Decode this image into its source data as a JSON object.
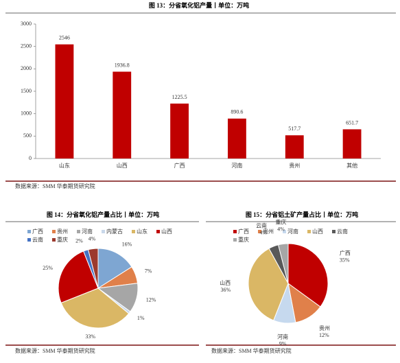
{
  "chart_data": [
    {
      "type": "bar",
      "title": "图 13：分省氧化铝产量丨单位：万吨",
      "categories": [
        "山东",
        "山西",
        "广西",
        "河南",
        "贵州",
        "其他"
      ],
      "values": [
        2546,
        1936.8,
        1225.5,
        890.6,
        517.7,
        651.7
      ],
      "color": "#c00000",
      "ylim": [
        0,
        3000
      ],
      "yticks": [
        0,
        500,
        1000,
        1500,
        2000,
        2500,
        3000
      ],
      "source": "数据来源：SMM 华泰期货研究院"
    },
    {
      "type": "pie",
      "title": "图 14：分省氧化铝产量占比丨单位：万吨",
      "categories": [
        "广西",
        "贵州",
        "河南",
        "内蒙古",
        "山东",
        "山西",
        "云南",
        "重庆"
      ],
      "values": [
        16,
        7,
        12,
        1,
        33,
        25,
        2,
        4
      ],
      "value_labels": [
        "16%",
        "7%",
        "12%",
        "1%",
        "33%",
        "25%",
        "2%",
        "4%"
      ],
      "colors": [
        "#7ea6d2",
        "#e0804a",
        "#a6a6a6",
        "#c9d8ea",
        "#dab765",
        "#c00000",
        "#4472c4",
        "#9c3a2e"
      ],
      "source": "数据来源：SMM 华泰期货研究院"
    },
    {
      "type": "pie",
      "title": "图 15：分省铝土矿产量占比丨单位：万吨",
      "categories": [
        "广西",
        "贵州",
        "河南",
        "山西",
        "云南",
        "重庆"
      ],
      "values": [
        35,
        12,
        9,
        36,
        4,
        4
      ],
      "value_labels": [
        "35%",
        "12%",
        "9%",
        "36%",
        "4%",
        "4%"
      ],
      "colors": [
        "#c00000",
        "#e0804a",
        "#c6d9ee",
        "#dab765",
        "#595959",
        "#a6a6a6"
      ],
      "source": "数据来源：SMM 华泰期货研究院"
    }
  ]
}
